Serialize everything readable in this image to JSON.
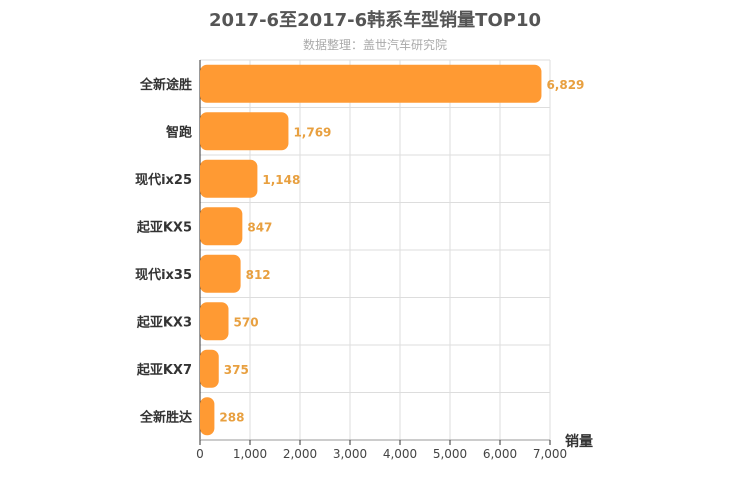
{
  "chart_data": {
    "type": "bar",
    "orientation": "horizontal",
    "title": "2017-6至2017-6韩系车型销量TOP10",
    "subtitle": "数据整理：盖世汽车研究院",
    "xlabel": "销量",
    "ylabel": "",
    "categories": [
      "全新途胜",
      "智跑",
      "现代ix25",
      "起亚KX5",
      "现代ix35",
      "起亚KX3",
      "起亚KX7",
      "全新胜达"
    ],
    "values": [
      6829,
      1769,
      1148,
      847,
      812,
      570,
      375,
      288
    ],
    "value_labels": [
      "6,829",
      "1,769",
      "1,148",
      "847",
      "812",
      "570",
      "375",
      "288"
    ],
    "xlim": [
      0,
      7000
    ],
    "ticks": [
      0,
      1000,
      2000,
      3000,
      4000,
      5000,
      6000,
      7000
    ],
    "tick_labels": [
      "0",
      "1,000",
      "2,000",
      "3,000",
      "4,000",
      "5,000",
      "6,000",
      "7,000"
    ],
    "grid": true,
    "legend": "none",
    "bar_color": "#ff9a33",
    "value_label_color": "#e8a040"
  }
}
